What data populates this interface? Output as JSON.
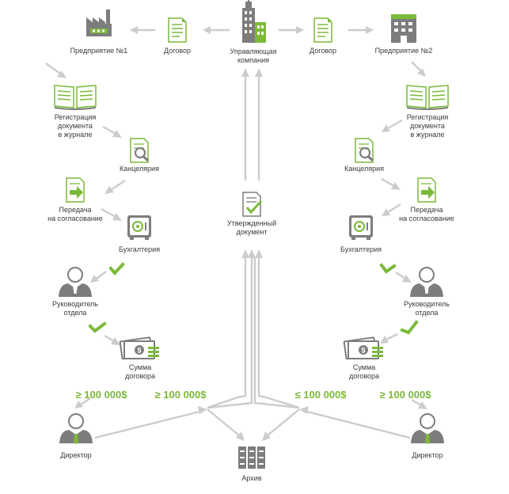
{
  "nodes": {
    "enterprise1": "Предприятие №1",
    "contract_left": "Договор",
    "company_line1": "Управляющая",
    "company_line2": "компания",
    "contract_right": "Договор",
    "enterprise2": "Предприятие №2",
    "registration": [
      "Регистрация",
      "документа",
      "в журнале"
    ],
    "office": "Канцелярия",
    "transfer": [
      "Передача",
      "на согласование"
    ],
    "accounting": "Бухгалтерия",
    "approved": [
      "Утвержденный",
      "документ"
    ],
    "head": [
      "Руководитель",
      "отдела"
    ],
    "amount": [
      "Сумма",
      "договора"
    ],
    "director": "Директор",
    "archive": "Архив"
  },
  "thresholds": {
    "gte": "≥ 100 000$",
    "lte": "≤ 100 000$"
  },
  "colors": {
    "accent": "#7cb93a",
    "icon_gray": "#7d7d7d",
    "arrow": "#cccccc",
    "text": "#3a3a3a"
  }
}
